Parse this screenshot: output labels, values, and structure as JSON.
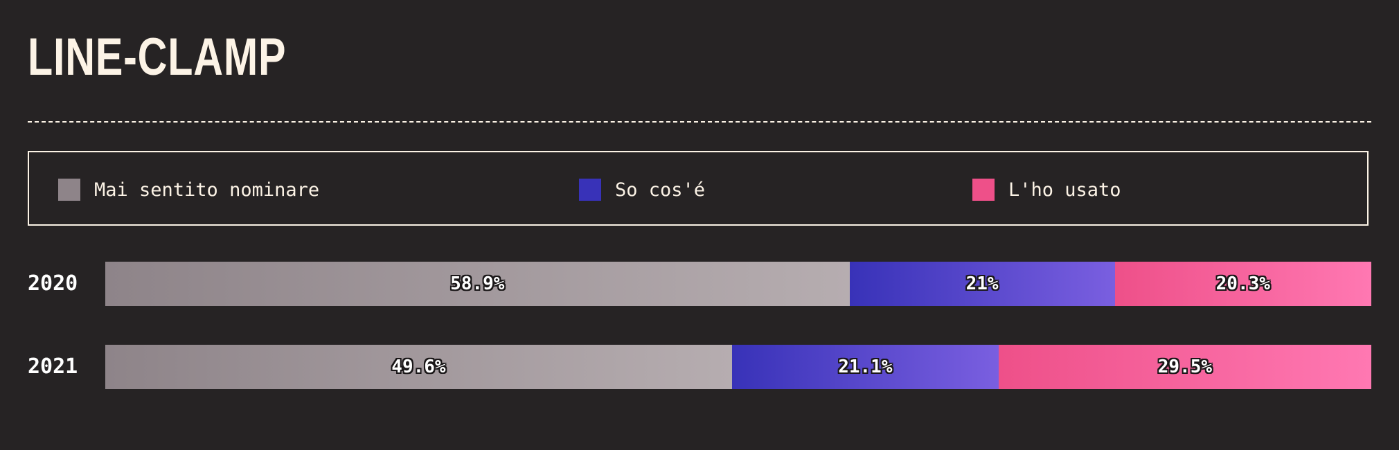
{
  "title": "LINE-CLAMP",
  "legend": {
    "items": [
      {
        "label": "Mai sentito nominare",
        "color": "#8e8489"
      },
      {
        "label": "So cos'é",
        "color": "#3832b8"
      },
      {
        "label": "L'ho usato",
        "color": "#ee5089"
      }
    ]
  },
  "chart_data": {
    "type": "bar",
    "stacked": true,
    "orientation": "horizontal",
    "categories": [
      "2020",
      "2021"
    ],
    "series": [
      {
        "name": "Mai sentito nominare",
        "values": [
          58.9,
          49.6
        ],
        "labels": [
          "58.9%",
          "49.6%"
        ],
        "gradient": [
          "#8e8489",
          "#b6adb0"
        ]
      },
      {
        "name": "So cos'é",
        "values": [
          21,
          21.1
        ],
        "labels": [
          "21%",
          "21.1%"
        ],
        "gradient": [
          "#3832b8",
          "#7a5fe0"
        ]
      },
      {
        "name": "L'ho usato",
        "values": [
          20.3,
          29.5
        ],
        "labels": [
          "20.3%",
          "29.5%"
        ],
        "gradient": [
          "#ee5089",
          "#ff78b2"
        ]
      }
    ],
    "xlim": [
      0,
      100
    ],
    "grid": false,
    "legend_position": "top"
  }
}
